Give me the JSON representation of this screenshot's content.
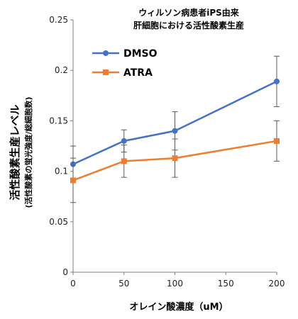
{
  "chart_data": {
    "type": "line",
    "title_lines": [
      "ウィルソン病患者iPS由来",
      "肝細胞における活性酸素生産"
    ],
    "xlabel": "オレイン酸濃度（uM）",
    "ylabel_main": "活性酸素生産レベル",
    "ylabel_sub": "(活性酸素の蛍光強度/総細胞数)",
    "x": [
      0,
      50,
      100,
      200
    ],
    "xlim": [
      0,
      200
    ],
    "xticks": [
      "0",
      "50",
      "100",
      "150",
      "200"
    ],
    "ylim": [
      0,
      0.25
    ],
    "yticks": [
      "0",
      "0.05",
      "0.1",
      "0.15",
      "0.2",
      "0.25"
    ],
    "grid": false,
    "legend_position": "top-left",
    "series": [
      {
        "name": "DMSO",
        "color": "#4472C4",
        "marker": "circle",
        "values": [
          0.107,
          0.13,
          0.14,
          0.189
        ],
        "errors": [
          0.018,
          0.011,
          0.019,
          0.025
        ]
      },
      {
        "name": "ATRA",
        "color": "#ED7D31",
        "marker": "square",
        "values": [
          0.091,
          0.11,
          0.113,
          0.13
        ],
        "errors": [
          0.022,
          0.016,
          0.019,
          0.02
        ]
      }
    ]
  }
}
